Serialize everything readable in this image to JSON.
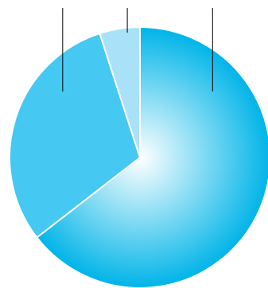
{
  "chart_data": {
    "type": "pie",
    "categories": [
      "",
      "",
      ""
    ],
    "values": [
      64.5,
      30.5,
      5.0
    ],
    "start_angle_deg": 0,
    "direction": "clockwise",
    "slice_colors": [
      "#00b4e8",
      "#45c8f2",
      "#a9e2f8"
    ],
    "gradient_center_color": "#ffffff",
    "slice_separator_color": "#ffffff",
    "leader_line_color": "#000000",
    "title": "",
    "legend": "none"
  }
}
